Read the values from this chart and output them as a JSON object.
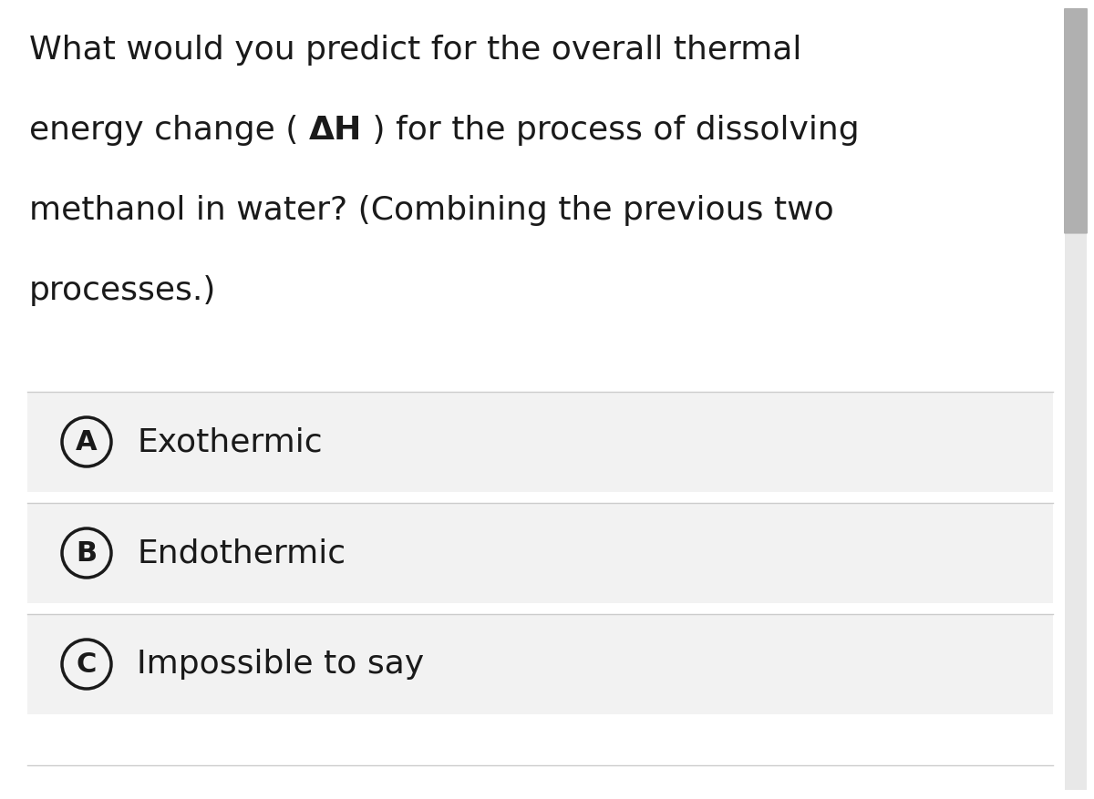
{
  "background_color": "#ffffff",
  "question_lines": [
    "What would you predict for the overall thermal",
    "energy change ( ΔH ) for the process of dissolving",
    "methanol in water? (Combining the previous two",
    "processes.)"
  ],
  "options": [
    {
      "letter": "A",
      "text": "Exothermic"
    },
    {
      "letter": "B",
      "text": "Endothermic"
    },
    {
      "letter": "C",
      "text": "Impossible to say"
    }
  ],
  "option_bg_color": "#f2f2f2",
  "option_border_color": "#cccccc",
  "text_color": "#1a1a1a",
  "circle_color": "#1a1a1a",
  "question_fontsize": 26,
  "option_fontsize": 26,
  "letter_fontsize": 22,
  "scrollbar_color": "#b0b0b0",
  "scrollbar_bg": "#e8e8e8",
  "fig_width": 12.0,
  "fig_height": 8.77,
  "dpi": 100
}
